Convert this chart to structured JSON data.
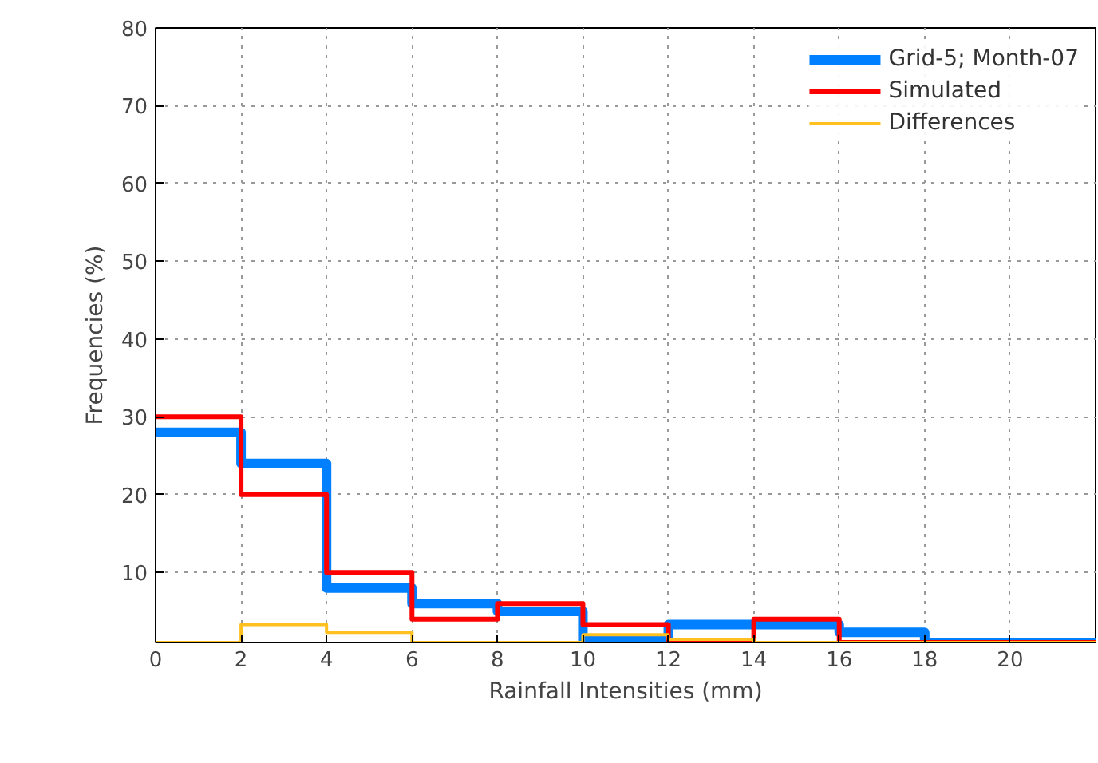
{
  "chart_data": {
    "type": "step",
    "xlabel": "Rainfall Intensities (mm)",
    "ylabel": "Frequencies (%)",
    "x": [
      0,
      2,
      4,
      6,
      8,
      10,
      12,
      14,
      16,
      18,
      20,
      22
    ],
    "series": [
      {
        "name": "Grid-5; Month-07",
        "color": "#0080ff",
        "values": [
          28,
          24,
          8,
          6,
          5,
          1.2,
          3.3,
          3.3,
          2.3,
          1,
          1,
          1
        ]
      },
      {
        "name": "Simulated",
        "color": "#ff0000",
        "values": [
          30,
          20,
          10,
          4,
          6,
          3.3,
          1,
          4,
          1,
          1,
          1,
          1
        ]
      },
      {
        "name": "Differences",
        "color": "#ffc020",
        "values": [
          1,
          3.3,
          2.3,
          1,
          1,
          2,
          1.4,
          1,
          1,
          1,
          1,
          1
        ]
      }
    ],
    "xlim": [
      0,
      22
    ],
    "ylim": [
      1,
      80
    ],
    "xticks": [
      0,
      2,
      4,
      6,
      8,
      10,
      12,
      14,
      16,
      18,
      20
    ],
    "yticks": [
      10,
      20,
      30,
      40,
      50,
      60,
      70,
      80
    ],
    "grid": true,
    "legend": "top right",
    "line_style": "solid",
    "marker": "none"
  }
}
